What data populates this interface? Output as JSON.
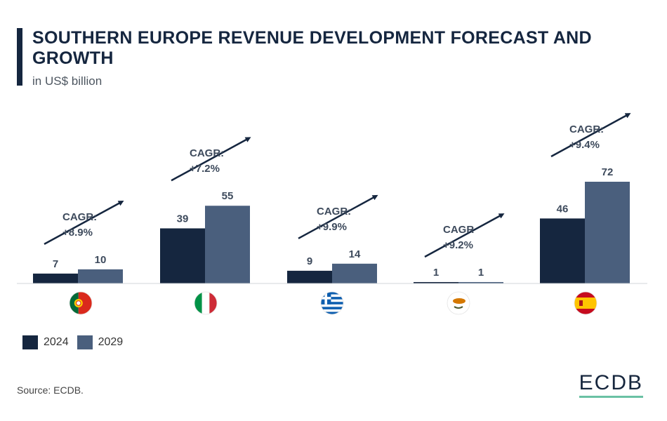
{
  "title": "SOUTHERN EUROPE REVENUE DEVELOPMENT FORECAST AND GROWTH",
  "subtitle": "in US$ billion",
  "source": "Source: ECDB.",
  "logo": "ECDB",
  "colors": {
    "dark": "#15263f",
    "light": "#4a5f7d",
    "text": "#3d4a5c",
    "accent": "#6ac1a4"
  },
  "chart_data": {
    "type": "bar",
    "categories": [
      "Portugal",
      "Italy",
      "Greece",
      "Cyprus",
      "Spain"
    ],
    "series": [
      {
        "name": "2024",
        "values": [
          7,
          39,
          9,
          1,
          46
        ]
      },
      {
        "name": "2029",
        "values": [
          10,
          55,
          14,
          1,
          72
        ]
      }
    ],
    "cagr": [
      {
        "label": "CAGR:",
        "value": "+8.9%"
      },
      {
        "label": "CAGR:",
        "value": "+7.2%"
      },
      {
        "label": "CAGR:",
        "value": "+9.9%"
      },
      {
        "label": "CAGR",
        "value": "+9.2%"
      },
      {
        "label": "CAGR:",
        "value": "+9.4%"
      }
    ],
    "flag_icons": [
      "portugal-flag-icon",
      "italy-flag-icon",
      "greece-flag-icon",
      "cyprus-flag-icon",
      "spain-flag-icon"
    ],
    "ylim": [
      0,
      72
    ],
    "grid": false,
    "legend_position": "bottom-left"
  }
}
